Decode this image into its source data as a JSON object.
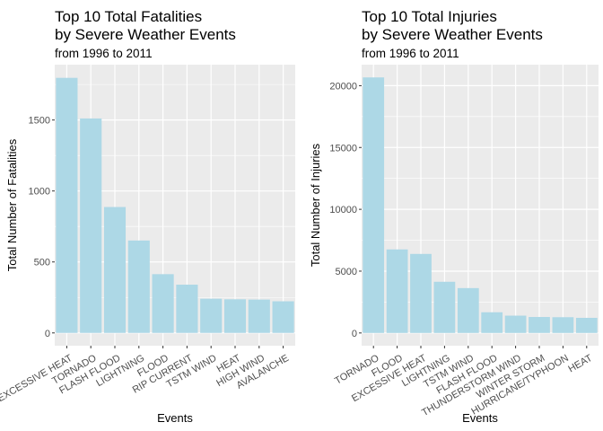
{
  "chart_data": [
    {
      "type": "bar",
      "title": [
        "Top 10 Total Fatalities",
        "by Severe Weather Events"
      ],
      "subtitle": "from 1996 to 2011",
      "xlabel": "Events",
      "ylabel": "Total Number of Fatalities",
      "categories": [
        "EXCESSIVE HEAT",
        "TORNADO",
        "FLASH FLOOD",
        "LIGHTNING",
        "FLOOD",
        "RIP CURRENT",
        "TSTM WIND",
        "HEAT",
        "HIGH WIND",
        "AVALANCHE"
      ],
      "values": [
        1797,
        1511,
        887,
        651,
        414,
        340,
        241,
        237,
        235,
        223
      ],
      "ylim": [
        -90,
        1890
      ],
      "yticks": [
        0,
        500,
        1000,
        1500
      ],
      "grid": true,
      "bar_color": "#add8e6",
      "panel_color": "#ebebeb"
    },
    {
      "type": "bar",
      "title": [
        "Top 10 Total Injuries",
        "by Severe Weather Events"
      ],
      "subtitle": "from 1996 to 2011",
      "xlabel": "Events",
      "ylabel": "Total Number of Injuries",
      "categories": [
        "TORNADO",
        "FLOOD",
        "EXCESSIVE HEAT",
        "LIGHTNING",
        "TSTM WIND",
        "FLASH FLOOD",
        "THUNDERSTORM WIND",
        "WINTER STORM",
        "HURRICANE/TYPHOON",
        "HEAT"
      ],
      "values": [
        20667,
        6758,
        6391,
        4141,
        3629,
        1674,
        1400,
        1292,
        1275,
        1222
      ],
      "ylim": [
        -1030,
        21700
      ],
      "yticks": [
        0,
        5000,
        10000,
        15000,
        20000
      ],
      "grid": true,
      "bar_color": "#add8e6",
      "panel_color": "#ebebeb"
    }
  ]
}
